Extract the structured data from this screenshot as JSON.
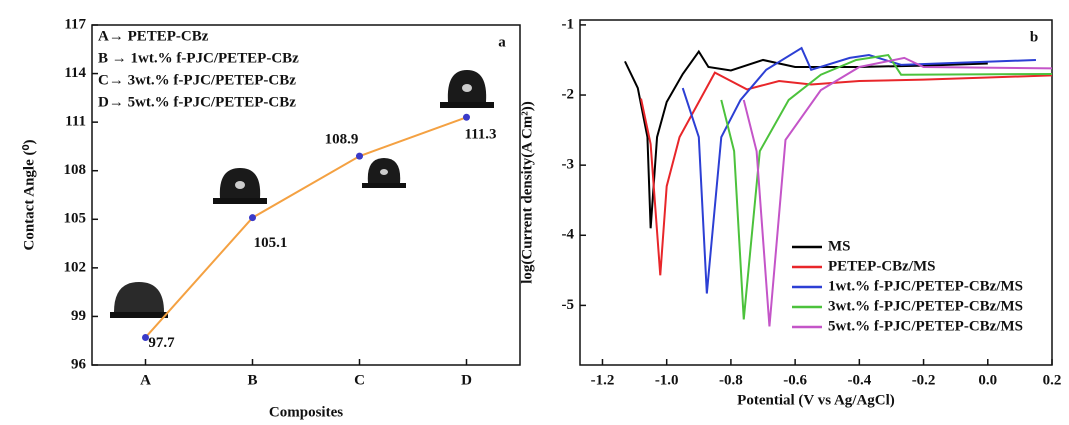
{
  "chart_data": [
    {
      "type": "line",
      "title": "a",
      "x_label": "Composites",
      "y_label": "Contact Angle (⁰)",
      "categories": [
        "A",
        "B",
        "C",
        "D"
      ],
      "values": [
        97.7,
        105.1,
        108.9,
        111.3
      ],
      "color": "#f4a142",
      "marker_color": "#3a3ac8",
      "ylim": [
        96,
        117
      ],
      "yticks": [
        96,
        99,
        102,
        105,
        108,
        111,
        114,
        117
      ],
      "annotations": [
        "A→ PETEP-CBz",
        "B → 1wt.% f-PJC/PETEP-CBz",
        "C→ 3wt.% f-PJC/PETEP-CBz",
        "D→ 5wt.% f-PJC/PETEP-CBz"
      ]
    },
    {
      "type": "line",
      "title": "b",
      "x_label": "Potential (V vs Ag/AgCl)",
      "y_label": "log(Current density(A Cm²))",
      "xlim": [
        -1.27,
        0.2
      ],
      "ylim": [
        -5.85,
        -0.93
      ],
      "xticks": [
        -1.2,
        {
          "value": -1,
          "label": "-1.0"
        },
        -0.8,
        -0.6,
        -0.4,
        -0.2,
        {
          "value": 0,
          "label": "0.0"
        },
        0.2
      ],
      "yticks": [
        -1,
        -2,
        -3,
        -4,
        -5
      ],
      "legend": "lower right",
      "series": [
        {
          "name": "MS",
          "color": "#000000",
          "x": [
            -1.13,
            -1.09,
            -1.06,
            -1.05,
            -1.03,
            -1.0,
            -0.95,
            -0.9,
            -0.87,
            -0.8,
            -0.7,
            -0.6,
            -0.4,
            -0.2,
            0.0
          ],
          "values": [
            -1.52,
            -1.9,
            -2.6,
            -3.9,
            -2.6,
            -2.1,
            -1.7,
            -1.38,
            -1.6,
            -1.65,
            -1.5,
            -1.6,
            -1.6,
            -1.58,
            -1.55
          ]
        },
        {
          "name": "PETEP-CBz/MS",
          "color": "#e8262a",
          "x": [
            -1.08,
            -1.05,
            -1.02,
            -1.0,
            -0.96,
            -0.9,
            -0.85,
            -0.8,
            -0.75,
            -0.65,
            -0.55,
            -0.4,
            -0.2,
            0.0,
            0.2
          ],
          "values": [
            -2.05,
            -2.7,
            -4.57,
            -3.3,
            -2.6,
            -2.1,
            -1.68,
            -1.8,
            -1.92,
            -1.8,
            -1.85,
            -1.8,
            -1.78,
            -1.75,
            -1.72
          ]
        },
        {
          "name": "1wt.% f-PJC/PETEP-CBz/MS",
          "color": "#2c3fd4",
          "x": [
            -0.95,
            -0.9,
            -0.875,
            -0.83,
            -0.77,
            -0.69,
            -0.58,
            -0.55,
            -0.43,
            -0.37,
            -0.27,
            0.15
          ],
          "values": [
            -1.9,
            -2.6,
            -4.83,
            -2.6,
            -2.07,
            -1.64,
            -1.33,
            -1.64,
            -1.47,
            -1.43,
            -1.57,
            -1.5
          ]
        },
        {
          "name": "3wt.% f-PJC/PETEP-CBz/MS",
          "color": "#4cc23c",
          "x": [
            -0.83,
            -0.79,
            -0.76,
            -0.71,
            -0.62,
            -0.52,
            -0.41,
            -0.31,
            -0.27,
            0.2
          ],
          "values": [
            -2.07,
            -2.8,
            -5.2,
            -2.8,
            -2.07,
            -1.71,
            -1.5,
            -1.43,
            -1.71,
            -1.7
          ]
        },
        {
          "name": "5wt.% f-PJC/PETEP-CBz/MS",
          "color": "#c455c8",
          "x": [
            -0.76,
            -0.72,
            -0.68,
            -0.63,
            -0.52,
            -0.4,
            -0.26,
            -0.2,
            0.2
          ],
          "values": [
            -2.07,
            -2.8,
            -5.3,
            -2.64,
            -1.93,
            -1.6,
            -1.47,
            -1.6,
            -1.62
          ]
        }
      ]
    }
  ]
}
